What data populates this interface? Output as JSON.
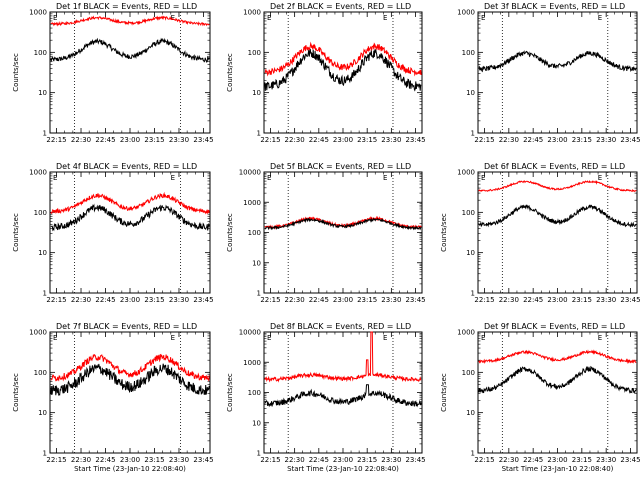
{
  "chart_data": [
    {
      "type": "line",
      "title": "Det 1f BLACK = Events, RED = LLD",
      "xlabel": "",
      "ylabel": "Counts/sec",
      "xticks": [
        "22:15",
        "22:30",
        "22:45",
        "23:00",
        "23:15",
        "23:30",
        "23:45"
      ],
      "yticks": [
        "1",
        "10",
        "100",
        "1000"
      ],
      "ylim": [
        1,
        1000
      ],
      "yscale": "log",
      "marker": "E",
      "vlines": [
        "22:26",
        "23:31"
      ],
      "series": [
        {
          "color": "#000000",
          "base": 65,
          "peak": 185,
          "noise": 0.06,
          "phase_peak1": "22:40",
          "phase_peak2": "23:20"
        },
        {
          "color": "#ff0000",
          "base": 500,
          "peak": 720,
          "noise": 0.03,
          "phase_peak1": "22:40",
          "phase_peak2": "23:20"
        }
      ]
    },
    {
      "type": "line",
      "title": "Det 2f BLACK = Events, RED = LLD",
      "xlabel": "",
      "ylabel": "Counts/sec",
      "xticks": [
        "22:15",
        "22:30",
        "22:45",
        "23:00",
        "23:15",
        "23:30",
        "23:45"
      ],
      "yticks": [
        "1",
        "10",
        "100",
        "1000"
      ],
      "ylim": [
        1,
        1000
      ],
      "yscale": "log",
      "marker": "E",
      "vlines": [
        "22:26",
        "23:31"
      ],
      "series": [
        {
          "color": "#000000",
          "base": 14,
          "peak": 95,
          "noise": 0.12,
          "phase_peak1": "22:40",
          "phase_peak2": "23:20"
        },
        {
          "color": "#ff0000",
          "base": 32,
          "peak": 140,
          "noise": 0.08,
          "phase_peak1": "22:40",
          "phase_peak2": "23:20"
        }
      ]
    },
    {
      "type": "line",
      "title": "Det 3f BLACK = Events, RED = LLD",
      "xlabel": "",
      "ylabel": "",
      "xticks": [
        "22:15",
        "22:30",
        "22:45",
        "23:00",
        "23:15",
        "23:30",
        "23:45"
      ],
      "yticks": [
        "1",
        "10",
        "100",
        "1000"
      ],
      "ylim": [
        1,
        1000
      ],
      "yscale": "log",
      "marker": "E",
      "vlines": [
        "22:26",
        "23:31"
      ],
      "series": [
        {
          "color": "#000000",
          "base": 38,
          "peak": 95,
          "noise": 0.06,
          "phase_peak1": "22:40",
          "phase_peak2": "23:20"
        }
      ]
    },
    {
      "type": "line",
      "title": "Det 4f BLACK = Events, RED = LLD",
      "xlabel": "",
      "ylabel": "Counts/sec",
      "xticks": [
        "22:15",
        "22:30",
        "22:45",
        "23:00",
        "23:15",
        "23:30",
        "23:45"
      ],
      "yticks": [
        "1",
        "10",
        "100",
        "1000"
      ],
      "ylim": [
        1,
        1000
      ],
      "yscale": "log",
      "marker": "E",
      "vlines": [
        "22:26",
        "23:31"
      ],
      "series": [
        {
          "color": "#000000",
          "base": 42,
          "peak": 130,
          "noise": 0.08,
          "phase_peak1": "22:40",
          "phase_peak2": "23:20"
        },
        {
          "color": "#ff0000",
          "base": 105,
          "peak": 260,
          "noise": 0.05,
          "phase_peak1": "22:40",
          "phase_peak2": "23:20"
        }
      ]
    },
    {
      "type": "line",
      "title": "Det 5f BLACK = Events, RED = LLD",
      "xlabel": "",
      "ylabel": "Counts/sec",
      "xticks": [
        "22:15",
        "22:30",
        "22:45",
        "23:00",
        "23:15",
        "23:30",
        "23:45"
      ],
      "yticks": [
        "1",
        "10",
        "100",
        "1000",
        "10000"
      ],
      "ylim": [
        1,
        10000
      ],
      "yscale": "log",
      "marker": "E",
      "vlines": [
        "22:26",
        "23:31"
      ],
      "series": [
        {
          "color": "#ff0000",
          "base": 150,
          "peak": 290,
          "noise": 0.04,
          "phase_peak1": "22:40",
          "phase_peak2": "23:20"
        },
        {
          "color": "#000000",
          "base": 140,
          "peak": 265,
          "noise": 0.04,
          "phase_peak1": "22:40",
          "phase_peak2": "23:20"
        }
      ]
    },
    {
      "type": "line",
      "title": "Det 6f BLACK = Events, RED = LLD",
      "xlabel": "",
      "ylabel": "Counts/sec",
      "xticks": [
        "22:15",
        "22:30",
        "22:45",
        "23:00",
        "23:15",
        "23:30",
        "23:45"
      ],
      "yticks": [
        "1",
        "10",
        "100",
        "1000"
      ],
      "ylim": [
        1,
        1000
      ],
      "yscale": "log",
      "marker": "E",
      "vlines": [
        "22:26",
        "23:31"
      ],
      "series": [
        {
          "color": "#000000",
          "base": 48,
          "peak": 135,
          "noise": 0.05,
          "phase_peak1": "22:40",
          "phase_peak2": "23:20"
        },
        {
          "color": "#ff0000",
          "base": 340,
          "peak": 580,
          "noise": 0.02,
          "phase_peak1": "22:40",
          "phase_peak2": "23:20"
        }
      ]
    },
    {
      "type": "line",
      "title": "Det 7f BLACK = Events, RED = LLD",
      "xlabel": "Start Time (23-Jan-10 22:08:40)",
      "ylabel": "Counts/sec",
      "xticks": [
        "22:15",
        "22:30",
        "22:45",
        "23:00",
        "23:15",
        "23:30",
        "23:45"
      ],
      "yticks": [
        "1",
        "10",
        "100",
        "1000"
      ],
      "ylim": [
        1,
        1000
      ],
      "yscale": "log",
      "marker": "E",
      "vlines": [
        "22:26",
        "23:31"
      ],
      "series": [
        {
          "color": "#000000",
          "base": 35,
          "peak": 125,
          "noise": 0.14,
          "phase_peak1": "22:40",
          "phase_peak2": "23:20"
        },
        {
          "color": "#ff0000",
          "base": 72,
          "peak": 240,
          "noise": 0.08,
          "phase_peak1": "22:40",
          "phase_peak2": "23:20"
        }
      ]
    },
    {
      "type": "line",
      "title": "Det 8f BLACK = Events, RED = LLD",
      "xlabel": "Start Time (23-Jan-10 22:08:40)",
      "ylabel": "Counts/sec",
      "xticks": [
        "22:15",
        "22:30",
        "22:45",
        "23:00",
        "23:15",
        "23:30",
        "23:45"
      ],
      "yticks": [
        "1",
        "10",
        "100",
        "1000",
        "10000"
      ],
      "ylim": [
        1,
        10000
      ],
      "yscale": "log",
      "marker": "E",
      "vlines": [
        "22:26",
        "23:31"
      ],
      "series": [
        {
          "color": "#000000",
          "base": 42,
          "peak": 95,
          "noise": 0.1,
          "phase_peak1": "22:40",
          "phase_peak2": "23:20",
          "spike": "23:15"
        },
        {
          "color": "#ff0000",
          "base": 270,
          "peak": 380,
          "noise": 0.06,
          "phase_peak1": "22:40",
          "phase_peak2": "23:20",
          "spike": "23:15"
        }
      ]
    },
    {
      "type": "line",
      "title": "Det 9f BLACK = Events, RED = LLD",
      "xlabel": "Start Time (23-Jan-10 22:08:40)",
      "ylabel": "Counts/sec",
      "xticks": [
        "22:15",
        "22:30",
        "22:45",
        "23:00",
        "23:15",
        "23:30",
        "23:45"
      ],
      "yticks": [
        "1",
        "10",
        "100",
        "1000"
      ],
      "ylim": [
        1,
        1000
      ],
      "yscale": "log",
      "marker": "E",
      "vlines": [
        "22:26",
        "23:31"
      ],
      "series": [
        {
          "color": "#000000",
          "base": 35,
          "peak": 120,
          "noise": 0.06,
          "phase_peak1": "22:40",
          "phase_peak2": "23:20"
        },
        {
          "color": "#ff0000",
          "base": 185,
          "peak": 320,
          "noise": 0.03,
          "phase_peak1": "22:40",
          "phase_peak2": "23:20"
        }
      ]
    }
  ]
}
